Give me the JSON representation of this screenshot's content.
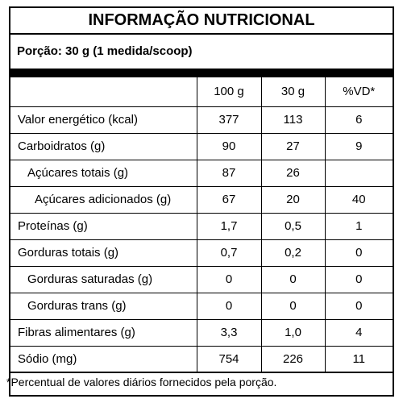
{
  "title": "INFORMAÇÃO NUTRICIONAL",
  "portion": "Porção: 30 g (1 medida/scoop)",
  "headers": [
    "",
    "100 g",
    "30 g",
    "%VD*"
  ],
  "rows": [
    {
      "name": "Valor energético (kcal)",
      "per100": "377",
      "per30": "113",
      "vd": "6"
    },
    {
      "name": "Carboidratos (g)",
      "per100": "90",
      "per30": "27",
      "vd": "9"
    },
    {
      "name": "Açúcares totais (g)",
      "per100": "87",
      "per30": "26",
      "vd": ""
    },
    {
      "name": "Açúcares adicionados (g)",
      "per100": "67",
      "per30": "20",
      "vd": "40"
    },
    {
      "name": "Proteínas (g)",
      "per100": "1,7",
      "per30": "0,5",
      "vd": "1"
    },
    {
      "name": "Gorduras totais (g)",
      "per100": "0,7",
      "per30": "0,2",
      "vd": "0"
    },
    {
      "name": "Gorduras saturadas (g)",
      "per100": "0",
      "per30": "0",
      "vd": "0"
    },
    {
      "name": "Gorduras trans (g)",
      "per100": "0",
      "per30": "0",
      "vd": "0"
    },
    {
      "name": "Fibras alimentares (g)",
      "per100": "3,3",
      "per30": "1,0",
      "vd": "4"
    },
    {
      "name": "Sódio (mg)",
      "per100": "754",
      "per30": "226",
      "vd": "11"
    }
  ],
  "footnote": "*Percentual de valores diários fornecidos pela porção."
}
